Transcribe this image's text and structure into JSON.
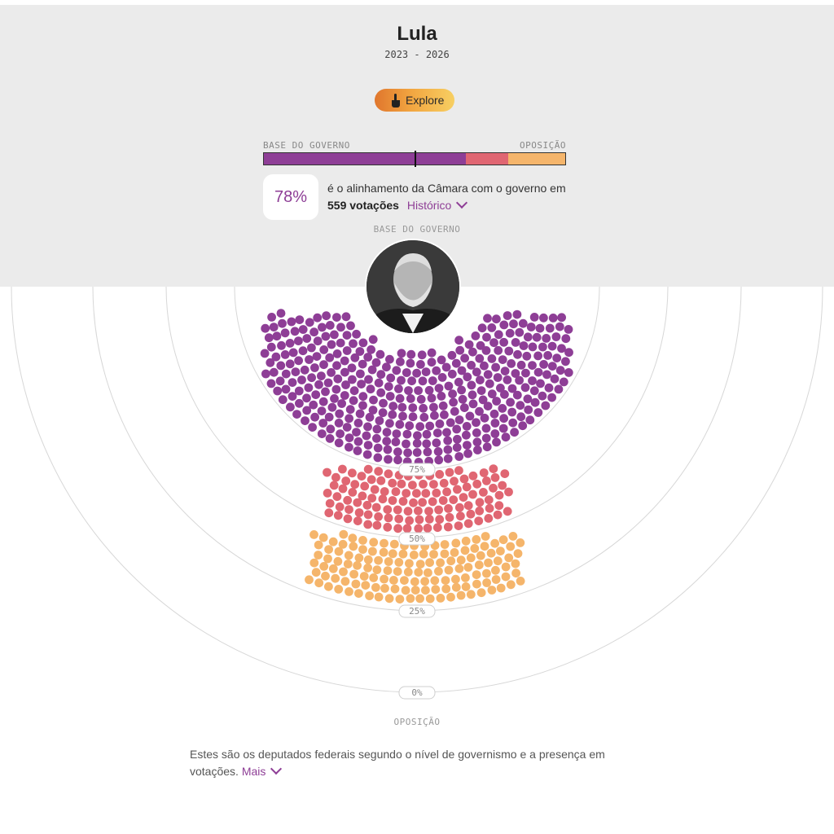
{
  "header": {
    "title": "Lula",
    "period": "2023 - 2026",
    "explore_label": "Explore"
  },
  "alignment_scale": {
    "left_label": "BASE DO GOVERNO",
    "right_label": "OPOSIÇÃO",
    "segments": [
      {
        "name": "base",
        "fraction": 0.67,
        "color": "#8e3e96"
      },
      {
        "name": "middle",
        "fraction": 0.14,
        "color": "#e06672"
      },
      {
        "name": "opposition",
        "fraction": 0.19,
        "color": "#f5b56b"
      }
    ],
    "marker_fraction": 0.5
  },
  "alignment": {
    "percent": "78%",
    "text_before": "é o alinhamento da Câmara com o governo em",
    "votes": "559 votações",
    "history_link": "Histórico"
  },
  "chart": {
    "top_label": "BASE DO GOVERNO",
    "bottom_label": "OPOSIÇÃO",
    "ring_labels": [
      "75%",
      "50%",
      "25%",
      "0%"
    ],
    "colors": {
      "base": "#8e3e96",
      "middle": "#e06672",
      "opposition": "#f5b56b",
      "rings": "#d7d7d7"
    }
  },
  "chart_data": {
    "type": "scatter",
    "title": "",
    "xlabel": "",
    "ylabel": "",
    "groups": [
      {
        "color": "#8e3e96",
        "approx_count": 370
      },
      {
        "color": "#e06672",
        "approx_count": 90
      },
      {
        "color": "#f5b56b",
        "approx_count": 105
      }
    ],
    "ticks": [
      "75%",
      "50%",
      "25%",
      "0%"
    ]
  },
  "footer": {
    "description": "Estes são os deputados federais segundo o nível de governismo e a presença em votações.",
    "more_link": "Mais"
  }
}
